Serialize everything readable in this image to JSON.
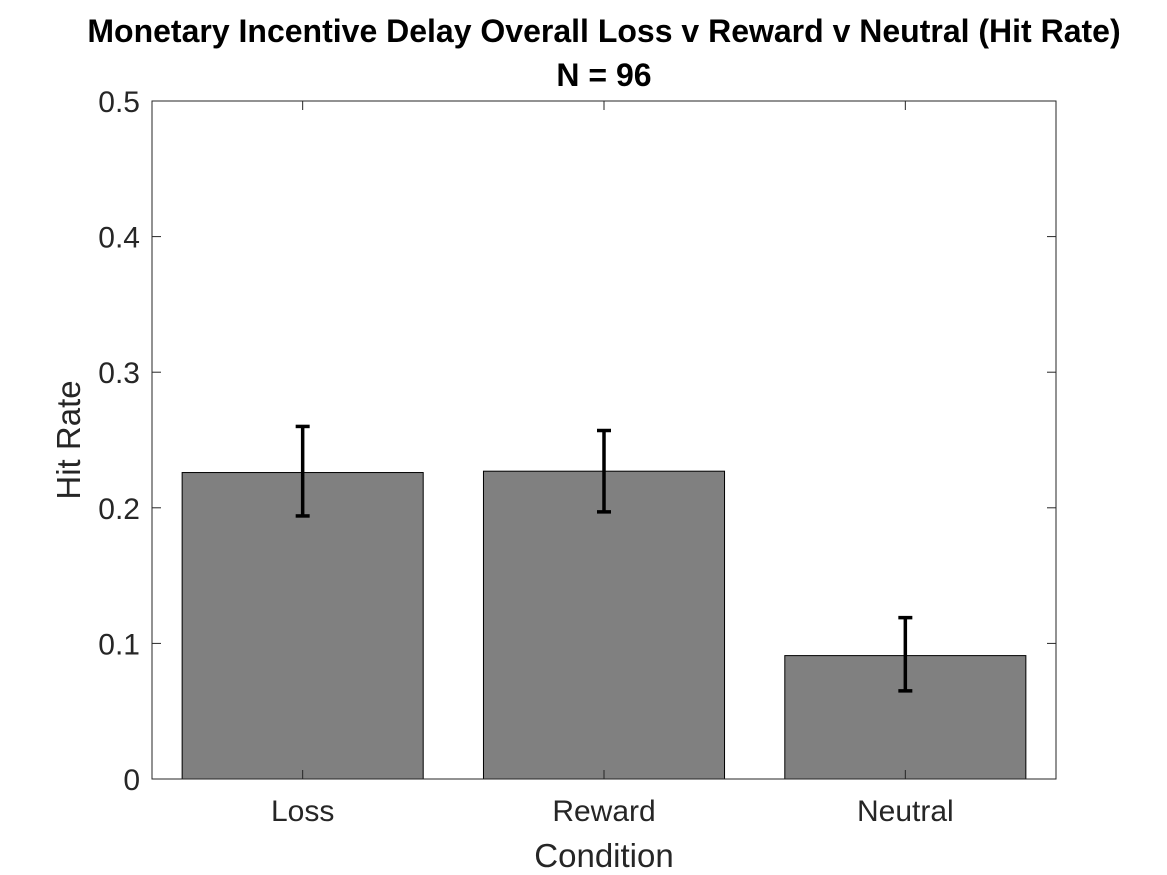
{
  "chart_data": {
    "type": "bar",
    "title": "Monetary Incentive Delay Overall Loss v Reward v Neutral (Hit Rate)",
    "subtitle": "N = 96",
    "xlabel": "Condition",
    "ylabel": "Hit Rate",
    "categories": [
      "Loss",
      "Reward",
      "Neutral"
    ],
    "values": [
      0.226,
      0.227,
      0.091
    ],
    "error_bars": [
      {
        "low": 0.194,
        "high": 0.26
      },
      {
        "low": 0.197,
        "high": 0.257
      },
      {
        "low": 0.065,
        "high": 0.119
      }
    ],
    "ylim": [
      0,
      0.5
    ],
    "yticks": [
      0,
      0.1,
      0.2,
      0.3,
      0.4,
      0.5
    ],
    "ytick_labels": [
      "0",
      "0.1",
      "0.2",
      "0.3",
      "0.4",
      "0.5"
    ],
    "grid": false,
    "legend": "none",
    "bar_color": "#808080",
    "errorbar_color": "#000000"
  }
}
